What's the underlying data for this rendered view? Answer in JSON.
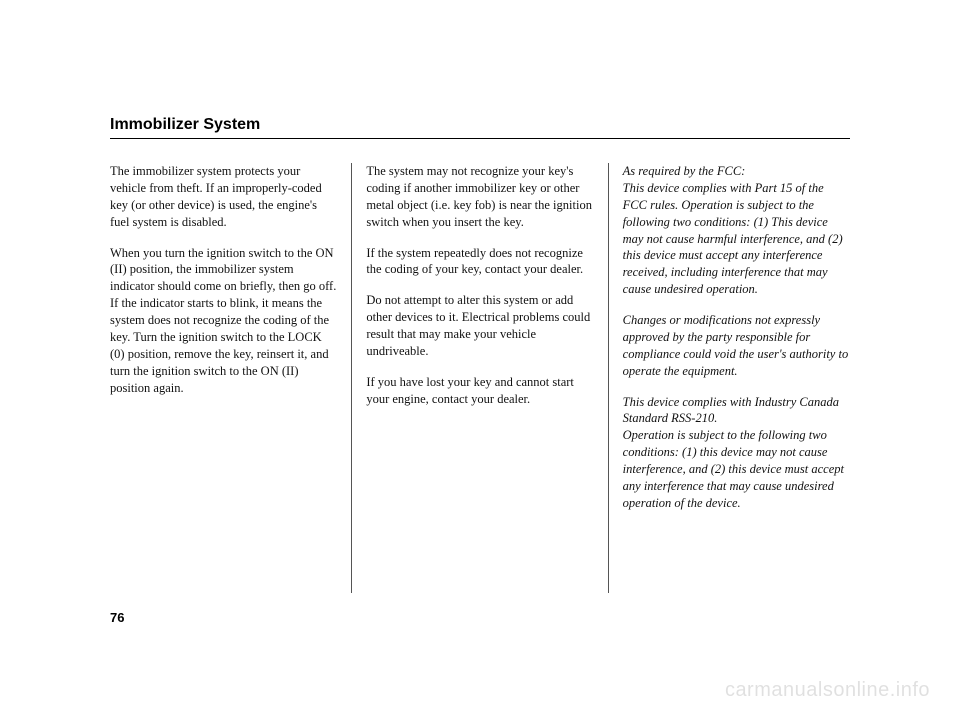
{
  "title": "Immobilizer System",
  "page_number": "76",
  "watermark": "carmanualsonline.info",
  "columns": {
    "col1": {
      "p1": "The immobilizer system protects your vehicle from theft. If an improperly-coded key (or other device) is used, the engine's fuel system is disabled.",
      "p2": "When you turn the ignition switch to the ON (II) position, the immobilizer system indicator should come on briefly, then go off. If the indicator starts to blink, it means the system does not recognize the coding of the key. Turn the ignition switch to the LOCK (0) position, remove the key, reinsert it, and turn the ignition switch to the ON (II) position again."
    },
    "col2": {
      "p1": "The system may not recognize your key's coding if another immobilizer key or other metal object (i.e. key fob) is near the ignition switch when you insert the key.",
      "p2": "If the system repeatedly does not recognize the coding of your key, contact your dealer.",
      "p3": "Do not attempt to alter this system or add other devices to it. Electrical problems could result that may make your vehicle undriveable.",
      "p4": "If you have lost your key and cannot start your engine, contact your dealer."
    },
    "col3": {
      "p1a": "As required by the FCC:",
      "p1b": "This device complies with Part 15 of the FCC rules. Operation is subject to the following two conditions: (1) This device may not cause harmful interference, and (2) this device must accept any interference received, including interference that may cause undesired operation.",
      "p2": "Changes or modifications not expressly approved by the party responsible for compliance could void the user's authority to operate the equipment.",
      "p3a": "This device complies with Industry Canada Standard RSS-210.",
      "p3b": "Operation is subject to the following two conditions: (1) this device may not cause interference, and (2) this device must accept any interference that may cause undesired operation of the device."
    }
  }
}
